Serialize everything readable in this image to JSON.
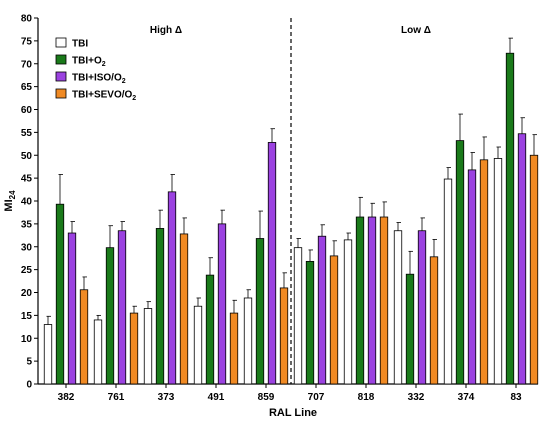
{
  "chart_data": {
    "type": "bar",
    "xlabel": "RAL Line",
    "ylabel_main": "MI",
    "ylabel_sub": "24",
    "ylim": [
      0,
      80
    ],
    "y_ticks": [
      0,
      5,
      10,
      15,
      20,
      25,
      30,
      35,
      40,
      45,
      50,
      55,
      60,
      65,
      70,
      75,
      80
    ],
    "categories": [
      "382",
      "761",
      "373",
      "491",
      "859",
      "707",
      "818",
      "332",
      "374",
      "83"
    ],
    "regions": [
      {
        "label": "High Δ",
        "categories": [
          "382",
          "761",
          "373",
          "491",
          "859"
        ]
      },
      {
        "label": "Low Δ",
        "categories": [
          "707",
          "818",
          "332",
          "374",
          "83"
        ]
      }
    ],
    "divider_after_category": "859",
    "series": [
      {
        "legend_main": "TBI",
        "legend_sub": "",
        "color": "#ffffff",
        "values": [
          13,
          14,
          16.5,
          17,
          18.8,
          29.8,
          31.5,
          33.5,
          44.8,
          49.3
        ],
        "errors": [
          1.8,
          1,
          1.5,
          1.8,
          1.8,
          2,
          1.5,
          1.8,
          2.5,
          2.5
        ]
      },
      {
        "legend_main": "TBI+O",
        "legend_sub": "2",
        "color": "#1a7a1a",
        "values": [
          39.3,
          29.8,
          34,
          23.8,
          31.8,
          26.8,
          36.5,
          24,
          53.2,
          72.3
        ],
        "errors": [
          6.5,
          4.8,
          4,
          3.8,
          6,
          2.5,
          4.3,
          5,
          5.8,
          3.3
        ]
      },
      {
        "legend_main": "TBI+ISO/O",
        "legend_sub": "2",
        "color": "#9b42e0",
        "values": [
          33,
          33.5,
          42,
          35,
          52.8,
          32.3,
          36.5,
          33.5,
          46.8,
          54.7
        ],
        "errors": [
          2.5,
          2,
          3.8,
          3,
          3,
          2.5,
          3,
          2.8,
          3.8,
          3.5
        ]
      },
      {
        "legend_main": "TBI+SEVO/O",
        "legend_sub": "2",
        "color": "#f08a24",
        "values": [
          20.6,
          15.5,
          32.8,
          15.5,
          21,
          28,
          36.5,
          27.8,
          49,
          50
        ],
        "errors": [
          2.8,
          1.5,
          3.5,
          2.8,
          3.3,
          3.3,
          3.3,
          3.8,
          5,
          4.5
        ]
      }
    ]
  }
}
